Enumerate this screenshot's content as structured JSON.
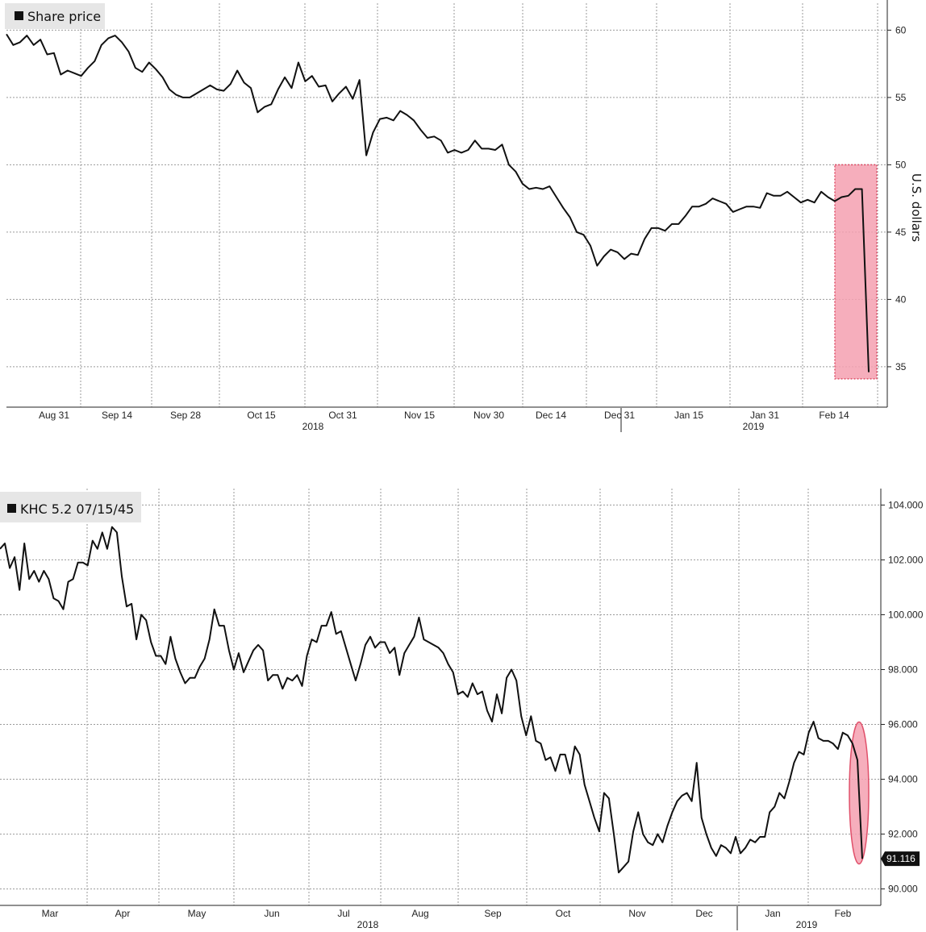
{
  "chart_data": [
    {
      "type": "line",
      "legend": "Share price",
      "ylabel": "U.S. dollars",
      "ylim": [
        32,
        62
      ],
      "yticks": [
        35,
        40,
        45,
        50,
        55,
        60
      ],
      "x_tick_labels": [
        "Aug 31",
        "Sep 14",
        "Sep 28",
        "Oct 15",
        "Oct 31",
        "Nov 15",
        "Nov 30",
        "Dec 14",
        "Dec 31",
        "Jan 15",
        "Jan 31",
        "Feb 14"
      ],
      "year_labels": [
        "2018",
        "2019"
      ],
      "grid": true,
      "legend_position": "top-left",
      "highlight": {
        "shape": "rectangle",
        "color": "#f4a0b0",
        "y_range": [
          34.1,
          50
        ]
      },
      "series": [
        {
          "values": [
            59.7,
            58.9,
            59.1,
            59.6,
            58.9,
            59.3,
            58.2,
            58.3,
            56.7,
            57.0,
            56.8,
            56.6,
            57.2,
            57.7,
            58.9,
            59.4,
            59.6,
            59.1,
            58.4,
            57.2,
            56.9,
            57.6,
            57.1,
            56.5,
            55.6,
            55.2,
            55.0,
            55.0,
            55.3,
            55.6,
            55.9,
            55.6,
            55.5,
            56.0,
            57.0,
            56.1,
            55.7,
            53.9,
            54.3,
            54.5,
            55.6,
            56.5,
            55.7,
            57.6,
            56.2,
            56.6,
            55.8,
            55.9,
            54.7,
            55.3,
            55.8,
            54.9,
            56.3,
            50.7,
            52.4,
            53.4,
            53.5,
            53.3,
            54.0,
            53.7,
            53.3,
            52.6,
            52.0,
            52.1,
            51.8,
            50.9,
            51.1,
            50.9,
            51.1,
            51.8,
            51.2,
            51.2,
            51.1,
            51.5,
            50.0,
            49.5,
            48.6,
            48.2,
            48.3,
            48.2,
            48.4,
            47.6,
            46.8,
            46.1,
            45.0,
            44.8,
            44.0,
            42.5,
            43.2,
            43.7,
            43.5,
            43.0,
            43.4,
            43.3,
            44.5,
            45.3,
            45.3,
            45.1,
            45.6,
            45.6,
            46.2,
            46.9,
            46.9,
            47.1,
            47.5,
            47.3,
            47.1,
            46.5,
            46.7,
            46.9,
            46.9,
            46.8,
            47.9,
            47.7,
            47.7,
            48.0,
            47.6,
            47.2,
            47.4,
            47.2,
            48.0,
            47.6,
            47.3,
            47.6,
            47.7,
            48.2,
            48.2,
            34.6
          ]
        }
      ]
    },
    {
      "type": "line",
      "legend": "KHC 5.2 07/15/45",
      "ylim": [
        89.4,
        104.6
      ],
      "yticks": [
        "90.000",
        "92.000",
        "94.000",
        "96.000",
        "98.000",
        "100.000",
        "102.000",
        "104.000"
      ],
      "last_value_label": "91.116",
      "x_tick_labels": [
        "Mar",
        "Apr",
        "May",
        "Jun",
        "Jul",
        "Aug",
        "Sep",
        "Oct",
        "Nov",
        "Dec",
        "Jan",
        "Feb"
      ],
      "year_labels": [
        "2018",
        "2019"
      ],
      "grid": true,
      "legend_position": "top-left",
      "highlight": {
        "shape": "ellipse",
        "color": "#f4a0b0",
        "y_range": [
          91.0,
          96.0
        ]
      },
      "series": [
        {
          "values": [
            102.4,
            102.6,
            101.7,
            102.1,
            100.9,
            102.6,
            101.3,
            101.6,
            101.2,
            101.6,
            101.3,
            100.6,
            100.5,
            100.2,
            101.2,
            101.3,
            101.9,
            101.9,
            101.8,
            102.7,
            102.4,
            103.0,
            102.4,
            103.2,
            103.0,
            101.4,
            100.3,
            100.4,
            99.1,
            100.0,
            99.8,
            99.0,
            98.5,
            98.5,
            98.2,
            99.2,
            98.4,
            97.9,
            97.5,
            97.7,
            97.7,
            98.1,
            98.4,
            99.1,
            100.2,
            99.6,
            99.6,
            98.7,
            98.0,
            98.6,
            97.9,
            98.3,
            98.7,
            98.9,
            98.7,
            97.6,
            97.8,
            97.8,
            97.3,
            97.7,
            97.6,
            97.8,
            97.4,
            98.5,
            99.1,
            99.0,
            99.6,
            99.6,
            100.1,
            99.3,
            99.4,
            98.8,
            98.2,
            97.6,
            98.2,
            98.9,
            99.2,
            98.8,
            99.0,
            99.0,
            98.6,
            98.8,
            97.8,
            98.6,
            98.9,
            99.2,
            99.9,
            99.1,
            99.0,
            98.9,
            98.8,
            98.6,
            98.2,
            97.9,
            97.1,
            97.2,
            97.0,
            97.5,
            97.1,
            97.2,
            96.5,
            96.1,
            97.1,
            96.4,
            97.7,
            98.0,
            97.6,
            96.3,
            95.6,
            96.3,
            95.4,
            95.3,
            94.7,
            94.8,
            94.3,
            94.9,
            94.9,
            94.2,
            95.2,
            94.9,
            93.8,
            93.2,
            92.6,
            92.1,
            93.5,
            93.3,
            92.0,
            90.6,
            90.8,
            91.0,
            92.1,
            92.8,
            92.0,
            91.7,
            91.6,
            92.0,
            91.7,
            92.3,
            92.8,
            93.2,
            93.4,
            93.5,
            93.2,
            94.6,
            92.6,
            92.0,
            91.5,
            91.2,
            91.6,
            91.5,
            91.3,
            91.9,
            91.3,
            91.5,
            91.8,
            91.7,
            91.9,
            91.9,
            92.8,
            93.0,
            93.5,
            93.3,
            93.9,
            94.6,
            95.0,
            94.9,
            95.7,
            96.1,
            95.5,
            95.4,
            95.4,
            95.3,
            95.1,
            95.7,
            95.6,
            95.3,
            94.7,
            91.1
          ]
        }
      ]
    }
  ]
}
